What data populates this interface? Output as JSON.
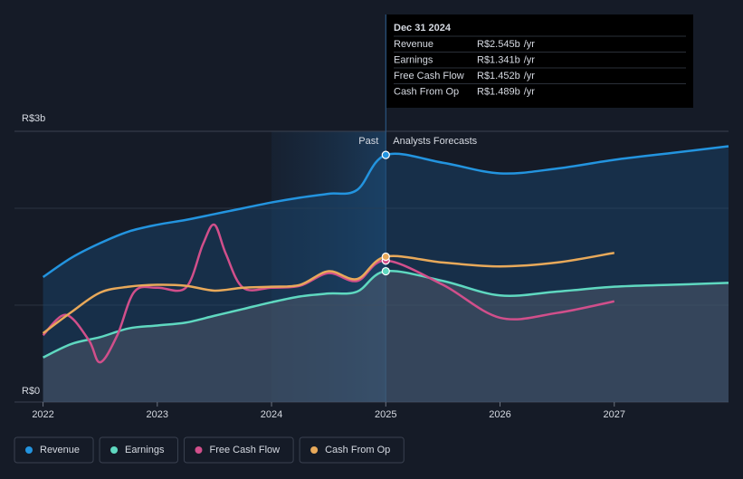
{
  "chart_data": {
    "type": "line",
    "xlim": [
      2021.75,
      2028
    ],
    "xticks": [
      2022,
      2023,
      2024,
      2025,
      2026,
      2027
    ],
    "ylim": [
      0,
      3
    ],
    "yticks": [
      {
        "value": 0,
        "label": "R$0"
      },
      {
        "value": 3,
        "label": "R$3b"
      }
    ],
    "gridlines": [
      1,
      2
    ],
    "grid": true,
    "past_label": "Past",
    "forecast_label": "Analysts Forecasts",
    "divider_x": 2025,
    "past_band": [
      2024,
      2025
    ],
    "series": [
      {
        "name": "Revenue",
        "color": "#2394df",
        "area": true,
        "x": [
          2022,
          2022.25,
          2022.5,
          2022.75,
          2023,
          2023.25,
          2023.5,
          2023.75,
          2024,
          2024.25,
          2024.5,
          2024.75,
          2025,
          2025.5,
          2026,
          2026.5,
          2027,
          2027.5,
          2028
        ],
        "values": [
          1.29,
          1.49,
          1.64,
          1.76,
          1.83,
          1.88,
          1.94,
          2.0,
          2.06,
          2.11,
          2.15,
          2.19,
          2.55,
          2.47,
          2.36,
          2.41,
          2.5,
          2.57,
          2.64
        ]
      },
      {
        "name": "Earnings",
        "color": "#5fd8c0",
        "area": true,
        "x": [
          2022,
          2022.25,
          2022.5,
          2022.75,
          2023,
          2023.25,
          2023.5,
          2023.75,
          2024,
          2024.25,
          2024.5,
          2024.75,
          2025,
          2025.5,
          2026,
          2026.5,
          2027,
          2027.5,
          2028
        ],
        "values": [
          0.46,
          0.6,
          0.67,
          0.76,
          0.79,
          0.82,
          0.89,
          0.96,
          1.03,
          1.09,
          1.12,
          1.14,
          1.35,
          1.25,
          1.1,
          1.14,
          1.19,
          1.21,
          1.23
        ]
      },
      {
        "name": "Free Cash Flow",
        "color": "#d14f8b",
        "area": false,
        "x": [
          2022,
          2022.2,
          2022.4,
          2022.5,
          2022.65,
          2022.8,
          2023,
          2023.25,
          2023.4,
          2023.5,
          2023.6,
          2023.75,
          2024,
          2024.25,
          2024.5,
          2024.75,
          2025,
          2025.5,
          2026,
          2026.5,
          2027
        ],
        "values": [
          0.69,
          0.9,
          0.64,
          0.41,
          0.69,
          1.14,
          1.18,
          1.18,
          1.63,
          1.83,
          1.53,
          1.18,
          1.18,
          1.2,
          1.33,
          1.25,
          1.46,
          1.21,
          0.87,
          0.92,
          1.04
        ]
      },
      {
        "name": "Cash From Op",
        "color": "#e8a95a",
        "area": false,
        "x": [
          2022,
          2022.25,
          2022.5,
          2022.75,
          2023,
          2023.25,
          2023.5,
          2023.75,
          2024,
          2024.25,
          2024.5,
          2024.75,
          2025,
          2025.5,
          2026,
          2026.5,
          2027
        ],
        "values": [
          0.71,
          0.93,
          1.13,
          1.19,
          1.21,
          1.2,
          1.15,
          1.18,
          1.19,
          1.21,
          1.35,
          1.27,
          1.5,
          1.44,
          1.4,
          1.44,
          1.54
        ]
      }
    ],
    "tooltip": {
      "title": "Dec 31 2024",
      "rows": [
        {
          "label": "Revenue",
          "value": "R$2.545b",
          "unit": "/yr"
        },
        {
          "label": "Earnings",
          "value": "R$1.341b",
          "unit": "/yr"
        },
        {
          "label": "Free Cash Flow",
          "value": "R$1.452b",
          "unit": "/yr"
        },
        {
          "label": "Cash From Op",
          "value": "R$1.489b",
          "unit": "/yr"
        }
      ]
    }
  }
}
